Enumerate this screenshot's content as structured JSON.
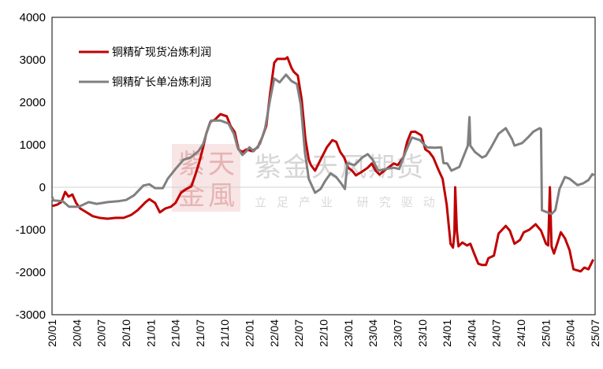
{
  "watermark": {
    "seal_text": [
      "紫",
      "天",
      "金",
      "風"
    ],
    "company": "紫金天风期货",
    "slogan": "立足产业 研究驱动"
  },
  "chart_data": {
    "type": "line",
    "title": "",
    "xlabel": "",
    "ylabel": "",
    "ylim": [
      -3000,
      4000
    ],
    "yticks": [
      -3000,
      -2000,
      -1000,
      0,
      1000,
      2000,
      3000,
      4000
    ],
    "xlim": [
      "2020-01-01",
      "2025-07-01"
    ],
    "xtick_labels": [
      "20/01",
      "20/04",
      "20/07",
      "20/10",
      "21/01",
      "21/04",
      "21/07",
      "21/10",
      "22/01",
      "22/04",
      "22/07",
      "22/10",
      "23/01",
      "23/04",
      "23/07",
      "23/10",
      "24/01",
      "24/04",
      "24/07",
      "24/10",
      "25/01",
      "25/04",
      "25/07"
    ],
    "grid": false,
    "zero_line": true,
    "legend_position": "top-left",
    "series": [
      {
        "name": "铜精矿现货冶炼利润",
        "color": "#c00000",
        "points": [
          [
            "2020-01-03",
            -440
          ],
          [
            "2020-01-20",
            -410
          ],
          [
            "2020-02-05",
            -350
          ],
          [
            "2020-02-19",
            -110
          ],
          [
            "2020-03-01",
            -220
          ],
          [
            "2020-03-15",
            -170
          ],
          [
            "2020-03-29",
            -370
          ],
          [
            "2020-04-14",
            -500
          ],
          [
            "2020-05-07",
            -590
          ],
          [
            "2020-05-29",
            -680
          ],
          [
            "2020-06-25",
            -720
          ],
          [
            "2020-07-24",
            -740
          ],
          [
            "2020-08-23",
            -720
          ],
          [
            "2020-09-22",
            -720
          ],
          [
            "2020-10-20",
            -650
          ],
          [
            "2020-11-13",
            -540
          ],
          [
            "2020-12-12",
            -350
          ],
          [
            "2020-12-26",
            -280
          ],
          [
            "2021-01-17",
            -370
          ],
          [
            "2021-02-04",
            -590
          ],
          [
            "2021-02-24",
            -500
          ],
          [
            "2021-03-14",
            -460
          ],
          [
            "2021-04-01",
            -370
          ],
          [
            "2021-04-21",
            -130
          ],
          [
            "2021-05-11",
            -40
          ],
          [
            "2021-05-29",
            20
          ],
          [
            "2021-06-13",
            280
          ],
          [
            "2021-06-27",
            570
          ],
          [
            "2021-07-12",
            940
          ],
          [
            "2021-07-23",
            1260
          ],
          [
            "2021-08-08",
            1540
          ],
          [
            "2021-08-25",
            1590
          ],
          [
            "2021-09-15",
            1720
          ],
          [
            "2021-10-08",
            1670
          ],
          [
            "2021-10-22",
            1440
          ],
          [
            "2021-11-07",
            1300
          ],
          [
            "2021-11-21",
            890
          ],
          [
            "2021-12-05",
            830
          ],
          [
            "2021-12-20",
            890
          ],
          [
            "2022-01-10",
            850
          ],
          [
            "2022-02-01",
            940
          ],
          [
            "2022-02-17",
            1170
          ],
          [
            "2022-03-02",
            1440
          ],
          [
            "2022-03-16",
            2190
          ],
          [
            "2022-04-01",
            2930
          ],
          [
            "2022-04-12",
            3020
          ],
          [
            "2022-05-11",
            3020
          ],
          [
            "2022-05-19",
            3060
          ],
          [
            "2022-06-04",
            2810
          ],
          [
            "2022-06-12",
            2720
          ],
          [
            "2022-06-27",
            2630
          ],
          [
            "2022-07-11",
            2070
          ],
          [
            "2022-07-25",
            1130
          ],
          [
            "2022-08-07",
            650
          ],
          [
            "2022-08-15",
            520
          ],
          [
            "2022-08-30",
            390
          ],
          [
            "2022-09-20",
            650
          ],
          [
            "2022-10-13",
            940
          ],
          [
            "2022-11-03",
            1110
          ],
          [
            "2022-11-17",
            1070
          ],
          [
            "2022-12-02",
            830
          ],
          [
            "2022-12-16",
            700
          ],
          [
            "2023-01-01",
            460
          ],
          [
            "2023-01-15",
            390
          ],
          [
            "2023-01-29",
            280
          ],
          [
            "2023-02-22",
            370
          ],
          [
            "2023-03-12",
            460
          ],
          [
            "2023-03-27",
            560
          ],
          [
            "2023-04-11",
            390
          ],
          [
            "2023-04-25",
            300
          ],
          [
            "2023-05-18",
            420
          ],
          [
            "2023-06-17",
            560
          ],
          [
            "2023-07-01",
            520
          ],
          [
            "2023-07-22",
            700
          ],
          [
            "2023-08-06",
            1070
          ],
          [
            "2023-08-20",
            1300
          ],
          [
            "2023-09-05",
            1310
          ],
          [
            "2023-09-28",
            1220
          ],
          [
            "2023-10-12",
            890
          ],
          [
            "2023-10-26",
            830
          ],
          [
            "2023-11-11",
            700
          ],
          [
            "2023-12-01",
            390
          ],
          [
            "2023-12-15",
            200
          ],
          [
            "2023-12-30",
            -410
          ],
          [
            "2024-01-14",
            -1330
          ],
          [
            "2024-01-23",
            -1420
          ],
          [
            "2024-01-28",
            -1090
          ],
          [
            "2024-02-01",
            0
          ],
          [
            "2024-02-07",
            -1020
          ],
          [
            "2024-02-13",
            -1390
          ],
          [
            "2024-02-27",
            -1300
          ],
          [
            "2024-03-14",
            -1370
          ],
          [
            "2024-03-26",
            -1330
          ],
          [
            "2024-04-10",
            -1560
          ],
          [
            "2024-04-25",
            -1800
          ],
          [
            "2024-05-09",
            -1830
          ],
          [
            "2024-05-23",
            -1830
          ],
          [
            "2024-06-02",
            -1670
          ],
          [
            "2024-06-22",
            -1610
          ],
          [
            "2024-07-09",
            -1090
          ],
          [
            "2024-08-05",
            -910
          ],
          [
            "2024-08-20",
            -1020
          ],
          [
            "2024-09-07",
            -1330
          ],
          [
            "2024-09-27",
            -1240
          ],
          [
            "2024-10-11",
            -1060
          ],
          [
            "2024-11-01",
            -1000
          ],
          [
            "2024-11-24",
            -870
          ],
          [
            "2024-12-14",
            -1020
          ],
          [
            "2025-01-02",
            -1330
          ],
          [
            "2025-01-10",
            -1370
          ],
          [
            "2025-01-16",
            0
          ],
          [
            "2025-01-22",
            -1390
          ],
          [
            "2025-02-01",
            -1560
          ],
          [
            "2025-02-15",
            -1280
          ],
          [
            "2025-02-26",
            -1060
          ],
          [
            "2025-03-11",
            -1200
          ],
          [
            "2025-03-28",
            -1480
          ],
          [
            "2025-04-12",
            -1930
          ],
          [
            "2025-05-08",
            -1980
          ],
          [
            "2025-05-22",
            -1890
          ],
          [
            "2025-06-07",
            -1930
          ],
          [
            "2025-06-24",
            -1700
          ]
        ]
      },
      {
        "name": "铜精矿长单冶炼利润",
        "color": "#808080",
        "points": [
          [
            "2020-01-01",
            -220
          ],
          [
            "2020-01-06",
            -310
          ],
          [
            "2020-02-10",
            -330
          ],
          [
            "2020-03-03",
            -460
          ],
          [
            "2020-04-08",
            -460
          ],
          [
            "2020-05-15",
            -350
          ],
          [
            "2020-06-14",
            -390
          ],
          [
            "2020-07-24",
            -350
          ],
          [
            "2020-09-01",
            -330
          ],
          [
            "2020-10-01",
            -300
          ],
          [
            "2020-10-30",
            -190
          ],
          [
            "2020-12-04",
            40
          ],
          [
            "2020-12-26",
            70
          ],
          [
            "2021-01-17",
            -20
          ],
          [
            "2021-02-15",
            -20
          ],
          [
            "2021-03-03",
            200
          ],
          [
            "2021-04-01",
            430
          ],
          [
            "2021-05-01",
            650
          ],
          [
            "2021-05-26",
            700
          ],
          [
            "2021-06-25",
            850
          ],
          [
            "2021-07-12",
            1020
          ],
          [
            "2021-07-26",
            1310
          ],
          [
            "2021-08-11",
            1570
          ],
          [
            "2021-09-15",
            1570
          ],
          [
            "2021-10-14",
            1500
          ],
          [
            "2021-11-04",
            1260
          ],
          [
            "2021-11-18",
            930
          ],
          [
            "2021-12-05",
            760
          ],
          [
            "2021-12-17",
            830
          ],
          [
            "2022-01-01",
            940
          ],
          [
            "2022-01-16",
            850
          ],
          [
            "2022-02-09",
            1020
          ],
          [
            "2022-02-28",
            1390
          ],
          [
            "2022-03-16",
            2060
          ],
          [
            "2022-04-01",
            2560
          ],
          [
            "2022-04-21",
            2470
          ],
          [
            "2022-05-14",
            2650
          ],
          [
            "2022-06-04",
            2500
          ],
          [
            "2022-06-24",
            2430
          ],
          [
            "2022-07-08",
            1940
          ],
          [
            "2022-07-23",
            830
          ],
          [
            "2022-08-07",
            200
          ],
          [
            "2022-08-30",
            -130
          ],
          [
            "2022-09-20",
            -40
          ],
          [
            "2022-10-07",
            150
          ],
          [
            "2022-10-27",
            330
          ],
          [
            "2022-11-17",
            240
          ],
          [
            "2022-12-05",
            90
          ],
          [
            "2022-12-19",
            -40
          ],
          [
            "2022-12-28",
            570
          ],
          [
            "2023-01-24",
            520
          ],
          [
            "2023-02-22",
            700
          ],
          [
            "2023-03-12",
            780
          ],
          [
            "2023-03-30",
            650
          ],
          [
            "2023-04-20",
            390
          ],
          [
            "2023-05-18",
            430
          ],
          [
            "2023-06-17",
            460
          ],
          [
            "2023-07-07",
            430
          ],
          [
            "2023-07-25",
            760
          ],
          [
            "2023-08-23",
            1170
          ],
          [
            "2023-09-22",
            1110
          ],
          [
            "2023-10-18",
            940
          ],
          [
            "2023-11-17",
            930
          ],
          [
            "2023-12-10",
            940
          ],
          [
            "2023-12-18",
            570
          ],
          [
            "2024-01-02",
            560
          ],
          [
            "2024-01-17",
            390
          ],
          [
            "2024-02-16",
            480
          ],
          [
            "2024-03-06",
            800
          ],
          [
            "2024-03-17",
            980
          ],
          [
            "2024-03-23",
            1650
          ],
          [
            "2024-03-26",
            980
          ],
          [
            "2024-04-13",
            830
          ],
          [
            "2024-05-09",
            700
          ],
          [
            "2024-05-23",
            740
          ],
          [
            "2024-06-11",
            930
          ],
          [
            "2024-07-09",
            1260
          ],
          [
            "2024-08-05",
            1390
          ],
          [
            "2024-08-28",
            1130
          ],
          [
            "2024-09-07",
            980
          ],
          [
            "2024-10-05",
            1040
          ],
          [
            "2024-10-26",
            1170
          ],
          [
            "2024-11-16",
            1310
          ],
          [
            "2024-12-09",
            1390
          ],
          [
            "2024-12-14",
            1370
          ],
          [
            "2024-12-17",
            -540
          ],
          [
            "2025-01-22",
            -630
          ],
          [
            "2025-02-06",
            -540
          ],
          [
            "2025-02-21",
            -40
          ],
          [
            "2025-03-11",
            240
          ],
          [
            "2025-03-28",
            200
          ],
          [
            "2025-04-27",
            50
          ],
          [
            "2025-05-17",
            90
          ],
          [
            "2025-06-07",
            170
          ],
          [
            "2025-06-21",
            310
          ],
          [
            "2025-06-27",
            280
          ]
        ]
      }
    ]
  }
}
